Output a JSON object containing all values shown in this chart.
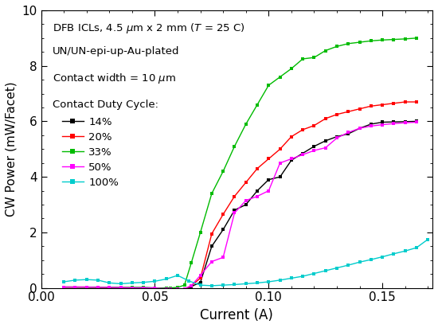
{
  "xlabel": "Current (A)",
  "ylabel": "CW Power (mW/Facet)",
  "xlim": [
    0.0,
    0.172
  ],
  "ylim": [
    0.0,
    10.0
  ],
  "xticks": [
    0.0,
    0.05,
    0.1,
    0.15
  ],
  "yticks": [
    0,
    2,
    4,
    6,
    8,
    10
  ],
  "annotation": [
    "DFB ICLs, 4.5 μm x 2 mm ($\\it{T}$ = 25 C)",
    "UN/UN-epi-up-Au-plated",
    "Contact width = 10 μm",
    "Contact Duty Cycle:"
  ],
  "series": [
    {
      "label": "14%",
      "color": "#000000",
      "x": [
        0.01,
        0.015,
        0.02,
        0.025,
        0.03,
        0.035,
        0.04,
        0.045,
        0.05,
        0.055,
        0.057,
        0.06,
        0.063,
        0.066,
        0.07,
        0.075,
        0.08,
        0.085,
        0.09,
        0.095,
        0.1,
        0.105,
        0.11,
        0.115,
        0.12,
        0.125,
        0.13,
        0.135,
        0.14,
        0.145,
        0.15,
        0.155,
        0.16,
        0.165
      ],
      "y": [
        0.03,
        0.03,
        0.03,
        0.03,
        0.02,
        0.01,
        0.01,
        0.01,
        0.0,
        -0.03,
        -0.03,
        -0.07,
        -0.05,
        0.05,
        0.2,
        1.5,
        2.1,
        2.8,
        3.0,
        3.5,
        3.9,
        4.0,
        4.6,
        4.85,
        5.1,
        5.3,
        5.45,
        5.55,
        5.75,
        5.9,
        5.97,
        5.98,
        5.99,
        6.0
      ]
    },
    {
      "label": "20%",
      "color": "#ff0000",
      "x": [
        0.01,
        0.015,
        0.02,
        0.025,
        0.03,
        0.035,
        0.04,
        0.045,
        0.05,
        0.055,
        0.057,
        0.06,
        0.063,
        0.066,
        0.07,
        0.075,
        0.08,
        0.085,
        0.09,
        0.095,
        0.1,
        0.105,
        0.11,
        0.115,
        0.12,
        0.125,
        0.13,
        0.135,
        0.14,
        0.145,
        0.15,
        0.155,
        0.16,
        0.165
      ],
      "y": [
        0.03,
        0.03,
        0.03,
        0.02,
        0.01,
        0.01,
        0.0,
        0.0,
        -0.01,
        -0.05,
        -0.05,
        -0.07,
        -0.04,
        0.08,
        0.35,
        1.95,
        2.65,
        3.3,
        3.8,
        4.3,
        4.65,
        5.0,
        5.45,
        5.7,
        5.85,
        6.1,
        6.25,
        6.35,
        6.45,
        6.55,
        6.6,
        6.65,
        6.7,
        6.7
      ]
    },
    {
      "label": "33%",
      "color": "#00bb00",
      "x": [
        0.01,
        0.015,
        0.02,
        0.025,
        0.03,
        0.035,
        0.04,
        0.045,
        0.05,
        0.055,
        0.057,
        0.06,
        0.063,
        0.066,
        0.07,
        0.075,
        0.08,
        0.085,
        0.09,
        0.095,
        0.1,
        0.105,
        0.11,
        0.115,
        0.12,
        0.125,
        0.13,
        0.135,
        0.14,
        0.145,
        0.15,
        0.155,
        0.16,
        0.165
      ],
      "y": [
        0.03,
        0.03,
        0.02,
        0.02,
        0.02,
        0.01,
        0.01,
        0.01,
        0.0,
        0.0,
        0.0,
        0.02,
        0.1,
        0.9,
        2.0,
        3.4,
        4.2,
        5.1,
        5.9,
        6.6,
        7.3,
        7.6,
        7.9,
        8.25,
        8.3,
        8.55,
        8.7,
        8.8,
        8.85,
        8.9,
        8.93,
        8.95,
        8.97,
        9.0
      ]
    },
    {
      "label": "50%",
      "color": "#ff00ff",
      "x": [
        0.01,
        0.015,
        0.02,
        0.025,
        0.03,
        0.035,
        0.04,
        0.045,
        0.05,
        0.055,
        0.057,
        0.06,
        0.063,
        0.066,
        0.07,
        0.075,
        0.08,
        0.085,
        0.09,
        0.095,
        0.1,
        0.105,
        0.11,
        0.115,
        0.12,
        0.125,
        0.13,
        0.135,
        0.14,
        0.145,
        0.15,
        0.155,
        0.16,
        0.165
      ],
      "y": [
        0.03,
        0.03,
        0.03,
        0.02,
        0.02,
        0.01,
        0.0,
        0.0,
        0.0,
        -0.03,
        -0.04,
        -0.04,
        -0.03,
        0.08,
        0.45,
        0.95,
        1.1,
        2.7,
        3.15,
        3.3,
        3.5,
        4.5,
        4.65,
        4.8,
        4.95,
        5.05,
        5.4,
        5.6,
        5.75,
        5.83,
        5.88,
        5.92,
        5.95,
        5.97
      ]
    },
    {
      "label": "100%",
      "color": "#00cccc",
      "x": [
        0.01,
        0.015,
        0.02,
        0.025,
        0.03,
        0.035,
        0.04,
        0.045,
        0.05,
        0.055,
        0.06,
        0.065,
        0.07,
        0.075,
        0.08,
        0.085,
        0.09,
        0.095,
        0.1,
        0.105,
        0.11,
        0.115,
        0.12,
        0.125,
        0.13,
        0.135,
        0.14,
        0.145,
        0.15,
        0.155,
        0.16,
        0.165,
        0.17
      ],
      "y": [
        0.22,
        0.28,
        0.3,
        0.28,
        0.18,
        0.15,
        0.18,
        0.2,
        0.24,
        0.32,
        0.45,
        0.25,
        0.1,
        0.08,
        0.1,
        0.12,
        0.15,
        0.18,
        0.22,
        0.28,
        0.35,
        0.42,
        0.52,
        0.62,
        0.72,
        0.82,
        0.93,
        1.02,
        1.12,
        1.23,
        1.33,
        1.45,
        1.75
      ]
    }
  ]
}
